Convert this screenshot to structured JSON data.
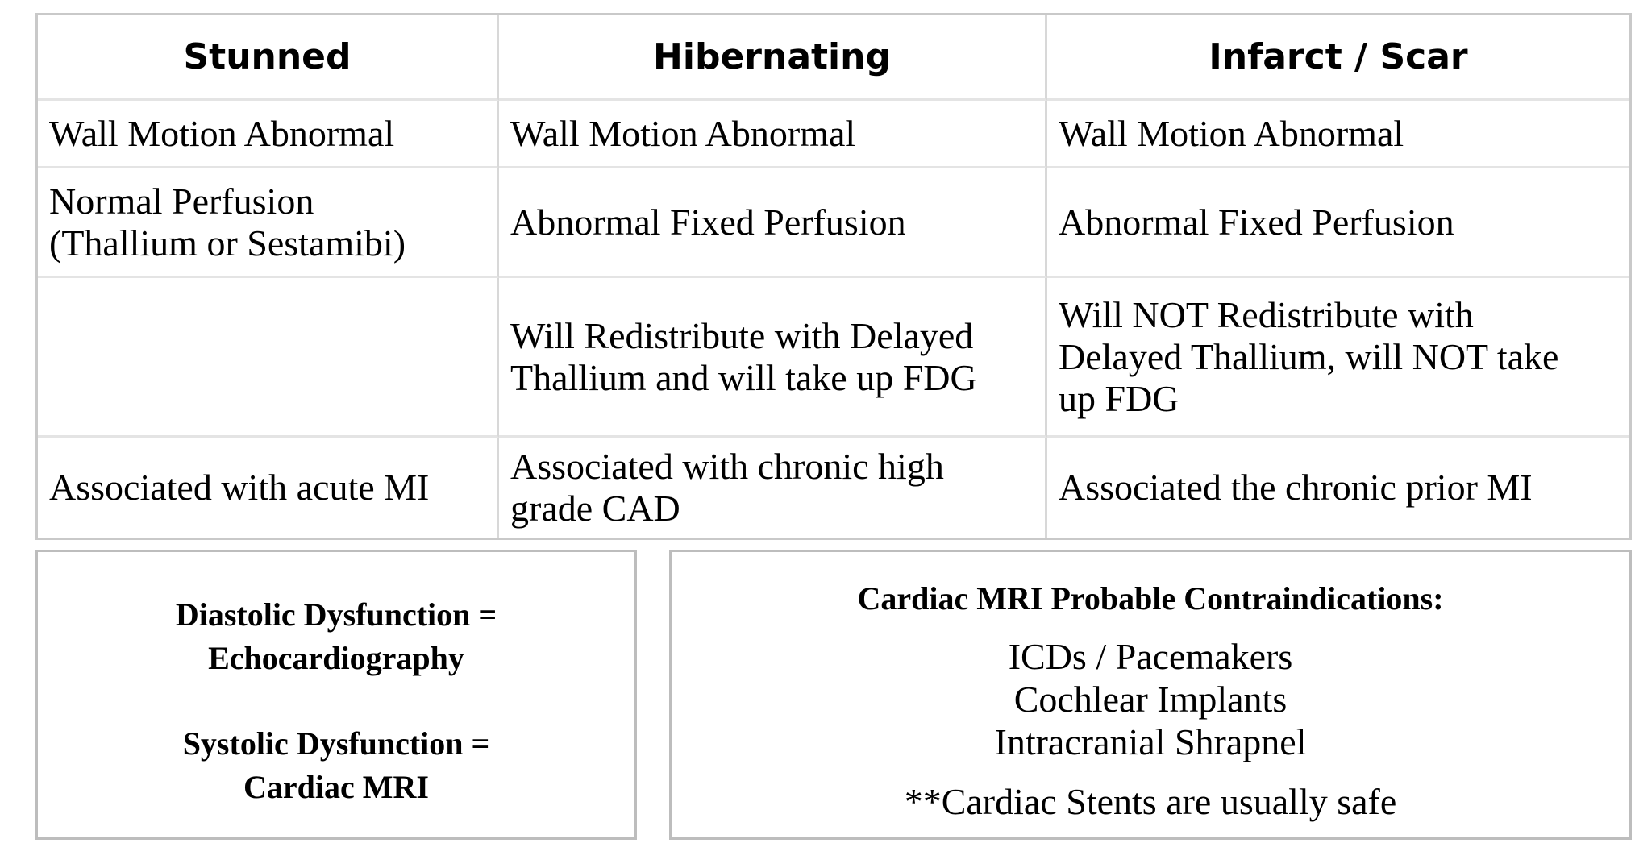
{
  "table": {
    "headers": [
      "Stunned",
      "Hibernating",
      "Infarct / Scar"
    ],
    "rows": [
      [
        "Wall Motion Abnormal",
        "Wall Motion Abnormal",
        "Wall Motion Abnormal"
      ],
      [
        [
          "Normal Perfusion",
          "(Thallium or Sestamibi)"
        ],
        [
          "Abnormal Fixed Perfusion"
        ],
        [
          "Abnormal Fixed Perfusion"
        ]
      ],
      [
        [
          ""
        ],
        [
          "Will Redistribute with Delayed",
          "Thallium and will take up FDG"
        ],
        [
          "Will NOT Redistribute with",
          "Delayed Thallium, will NOT take",
          "up FDG"
        ]
      ],
      [
        [
          "Associated with acute MI"
        ],
        [
          "Associated with chronic high",
          "grade CAD"
        ],
        [
          "Associated the chronic prior MI"
        ]
      ]
    ]
  },
  "dysfunction_box": {
    "diastolic_line1": "Diastolic Dysfunction =",
    "diastolic_line2": "Echocardiography",
    "systolic_line1": "Systolic Dysfunction =",
    "systolic_line2": "Cardiac MRI"
  },
  "mri_box": {
    "title": "Cardiac MRI Probable Contraindications:",
    "items": [
      "ICDs / Pacemakers",
      "Cochlear Implants",
      "Intracranial Shrapnel"
    ],
    "note": "**Cardiac Stents are usually safe"
  }
}
